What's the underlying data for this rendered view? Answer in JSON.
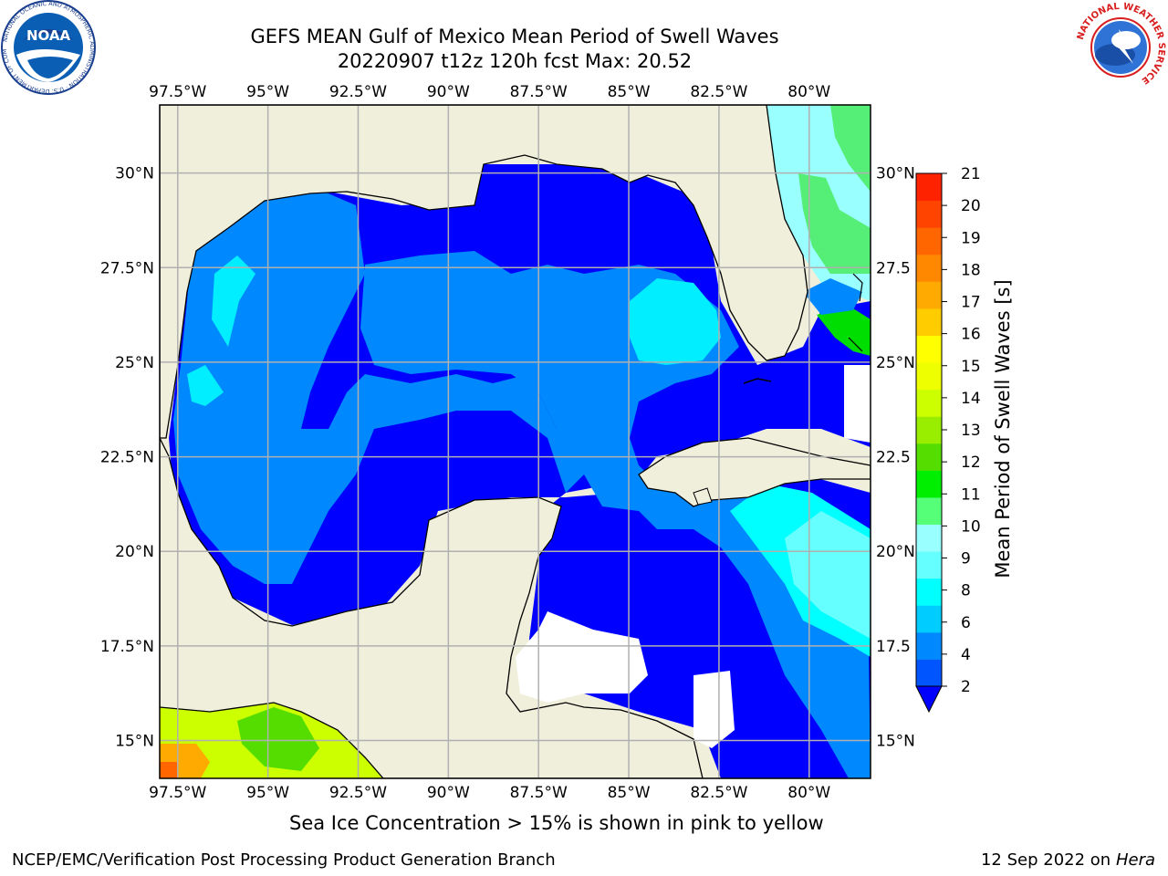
{
  "header": {
    "title_line1": "GEFS MEAN Gulf of Mexico Mean Period of Swell Waves",
    "title_line2": "20220907 t12z 120h fcst   Max: 20.52"
  },
  "logos": {
    "noaa_text": "NOAA",
    "noaa_ring_text": "NATIONAL OCEANIC AND ATMOSPHERIC ADMINISTRATION · U.S. DEPARTMENT OF COMMERCE",
    "nws_ring_text": "NATIONAL WEATHER SERVICE"
  },
  "map": {
    "lon_ticks": [
      "97.5°W",
      "95°W",
      "92.5°W",
      "90°W",
      "87.5°W",
      "85°W",
      "82.5°W",
      "80°W"
    ],
    "lon_values": [
      -97.5,
      -95,
      -92.5,
      -90,
      -87.5,
      -85,
      -82.5,
      -80
    ],
    "lat_ticks_left": [
      "30°N",
      "27.5°N",
      "25°N",
      "22.5°N",
      "20°N",
      "17.5°N",
      "15°N"
    ],
    "lat_ticks_right": [
      "30°N",
      "27.5",
      "25°N",
      "22.5",
      "20°N",
      "17.5",
      "15°N"
    ],
    "lat_values": [
      30,
      27.5,
      25,
      22.5,
      20,
      17.5,
      15
    ],
    "extent": {
      "lon_min": -98,
      "lon_max": -78.3,
      "lat_min": 14,
      "lat_max": 31.8
    },
    "land_color": "#efefdc",
    "gridline_color": "#b0b0b0"
  },
  "colorbar": {
    "label": "Mean Period of Swell Waves [s]",
    "ticks": [
      "21",
      "20",
      "19",
      "18",
      "17",
      "16",
      "15",
      "14",
      "13",
      "12",
      "11",
      "10",
      "9",
      "8",
      "6",
      "4",
      "2"
    ],
    "colors": [
      "#0055ff",
      "#0088ff",
      "#00ccff",
      "#00ffff",
      "#66ffff",
      "#99ffff",
      "#55ff77",
      "#00ee00",
      "#55dd00",
      "#99ee00",
      "#ccff00",
      "#eeff00",
      "#ffff00",
      "#ffcc00",
      "#ffaa00",
      "#ff8800",
      "#ff6600",
      "#ff4400",
      "#ff2200"
    ]
  },
  "footer": {
    "ice_note": "Sea Ice Concentration > 15% is shown in pink to yellow",
    "credit": "NCEP/EMC/Verification Post Processing Product Generation Branch",
    "date": "12 Sep 2022 on",
    "system": "Hera"
  }
}
